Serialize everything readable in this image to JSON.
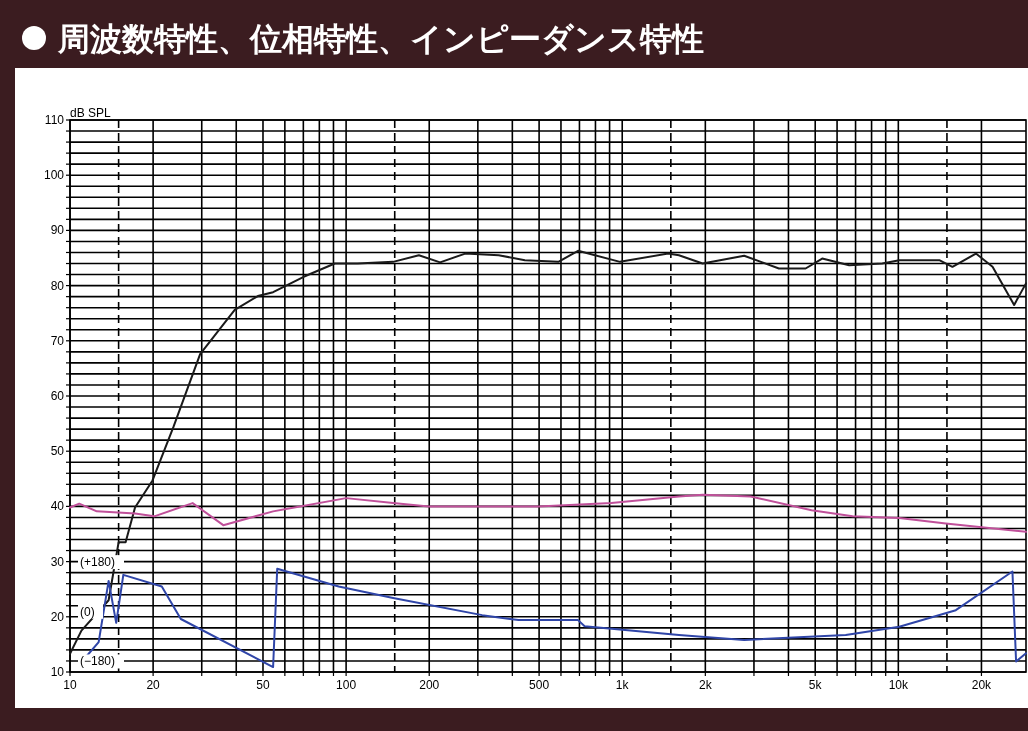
{
  "chart_data": {
    "type": "line",
    "title": "周波数特性、位相特性、インピーダンス特性",
    "ylabel": "dB SPL",
    "log": "x",
    "grid": true,
    "line_style": "solid",
    "xlim": [
      10,
      29000
    ],
    "ylim": [
      10,
      110
    ],
    "xticks": [
      10,
      20,
      {
        "value": 30,
        "label": null
      },
      {
        "value": 40,
        "label": null
      },
      50,
      {
        "value": 60,
        "label": null
      },
      {
        "value": 70,
        "label": null
      },
      {
        "value": 80,
        "label": null
      },
      {
        "value": 90,
        "label": null
      },
      100,
      200,
      {
        "value": 300,
        "label": null
      },
      {
        "value": 400,
        "label": null
      },
      500,
      {
        "value": 600,
        "label": null
      },
      {
        "value": 700,
        "label": null
      },
      {
        "value": 800,
        "label": null
      },
      {
        "value": 900,
        "label": null
      },
      {
        "value": 1000,
        "label": "1k"
      },
      {
        "value": 2000,
        "label": "2k"
      },
      {
        "value": 3000,
        "label": null
      },
      {
        "value": 4000,
        "label": null
      },
      {
        "value": 5000,
        "label": "5k"
      },
      {
        "value": 6000,
        "label": null
      },
      {
        "value": 7000,
        "label": null
      },
      {
        "value": 8000,
        "label": null
      },
      {
        "value": 9000,
        "label": null
      },
      {
        "value": 10000,
        "label": "10k"
      },
      {
        "value": 20000,
        "label": "20k"
      }
    ],
    "yticks": [
      10,
      {
        "value": 12,
        "label": null
      },
      {
        "value": 14,
        "label": null
      },
      {
        "value": 16,
        "label": null
      },
      {
        "value": 18,
        "label": null
      },
      20,
      {
        "value": 22,
        "label": null
      },
      {
        "value": 24,
        "label": null
      },
      {
        "value": 26,
        "label": null
      },
      {
        "value": 28,
        "label": null
      },
      30,
      {
        "value": 32,
        "label": null
      },
      {
        "value": 34,
        "label": null
      },
      {
        "value": 36,
        "label": null
      },
      {
        "value": 38,
        "label": null
      },
      40,
      {
        "value": 42,
        "label": null
      },
      {
        "value": 44,
        "label": null
      },
      {
        "value": 46,
        "label": null
      },
      {
        "value": 48,
        "label": null
      },
      50,
      {
        "value": 52,
        "label": null
      },
      {
        "value": 54,
        "label": null
      },
      {
        "value": 56,
        "label": null
      },
      {
        "value": 58,
        "label": null
      },
      60,
      {
        "value": 62,
        "label": null
      },
      {
        "value": 64,
        "label": null
      },
      {
        "value": 66,
        "label": null
      },
      {
        "value": 68,
        "label": null
      },
      70,
      {
        "value": 72,
        "label": null
      },
      {
        "value": 74,
        "label": null
      },
      {
        "value": 76,
        "label": null
      },
      {
        "value": 78,
        "label": null
      },
      80,
      {
        "value": 82,
        "label": null
      },
      {
        "value": 84,
        "label": null
      },
      {
        "value": 86,
        "label": null
      },
      {
        "value": 88,
        "label": null
      },
      90,
      {
        "value": 92,
        "label": null
      },
      {
        "value": 94,
        "label": null
      },
      {
        "value": 96,
        "label": null
      },
      {
        "value": 98,
        "label": null
      },
      100,
      {
        "value": 102,
        "label": null
      },
      {
        "value": 104,
        "label": null
      },
      {
        "value": 106,
        "label": null
      },
      {
        "value": 108,
        "label": null
      },
      110
    ],
    "ref_lines": [
      {
        "axis": "x",
        "value": 15,
        "line_style": "dashed",
        "color": "#000000"
      },
      {
        "axis": "x",
        "value": 150,
        "line_style": "dashed",
        "color": "#000000"
      },
      {
        "axis": "x",
        "value": 1500,
        "line_style": "dashed",
        "color": "#000000"
      },
      {
        "axis": "x",
        "value": 15000,
        "line_style": "dashed",
        "color": "#000000"
      }
    ],
    "annotations": [
      "(+180)",
      "(0)",
      "(−180)"
    ],
    "series": [
      {
        "color": "#1a1a1a",
        "x": [
          10,
          11,
          13.8,
          15,
          15.9,
          17.2,
          19.9,
          23.7,
          29.6,
          39.5,
          47.9,
          54.4,
          70.2,
          91,
          110,
          148,
          183.5,
          219,
          270,
          357,
          444,
          587,
          692,
          982,
          1466,
          1605,
          1955,
          2765,
          3694,
          4615,
          5300,
          6640,
          8750,
          10080,
          14070,
          15700,
          19100,
          21940,
          26270,
          29000
        ],
        "values": [
          13.3,
          17.5,
          23.0,
          33.5,
          33.5,
          39.8,
          44.7,
          54.4,
          67.6,
          75.6,
          78.1,
          78.8,
          81.6,
          84.0,
          84.0,
          84.3,
          85.5,
          84.2,
          85.8,
          85.5,
          84.6,
          84.3,
          86.3,
          84.3,
          85.8,
          85.5,
          84.0,
          85.4,
          83.1,
          83.1,
          84.9,
          83.7,
          84.0,
          84.6,
          84.6,
          83.4,
          85.8,
          83.4,
          76.5,
          80.4
        ]
      },
      {
        "color": "#c0509a",
        "x": [
          10,
          10.8,
          12.5,
          17.2,
          20.2,
          27.8,
          35.9,
          54.4,
          100,
          148,
          199,
          497,
          913,
          1605,
          1955,
          2920,
          4850,
          6830,
          10080,
          14860,
          29000
        ],
        "values": [
          39.8,
          40.5,
          39.1,
          38.7,
          38.2,
          40.6,
          36.6,
          39.1,
          41.5,
          40.6,
          40.0,
          40.0,
          40.6,
          41.8,
          42.1,
          41.8,
          39.3,
          38.2,
          37.9,
          36.9,
          35.4
        ]
      },
      {
        "color": "#2f45a8",
        "x": [
          11.5,
          12.7,
          13.8,
          14.7,
          15.6,
          21.5,
          25.2,
          54.4,
          56.3,
          94,
          148,
          311,
          421,
          692,
          731,
          1605,
          2765,
          6450,
          10080,
          16150,
          25900,
          26700,
          29000
        ],
        "values": [
          12.9,
          15.4,
          26.5,
          18.9,
          27.6,
          25.5,
          19.6,
          10.9,
          28.7,
          25.5,
          23.4,
          20.3,
          19.4,
          19.4,
          18.3,
          16.7,
          15.8,
          16.7,
          18.2,
          21.2,
          28.2,
          11.9,
          13.4
        ]
      }
    ]
  }
}
